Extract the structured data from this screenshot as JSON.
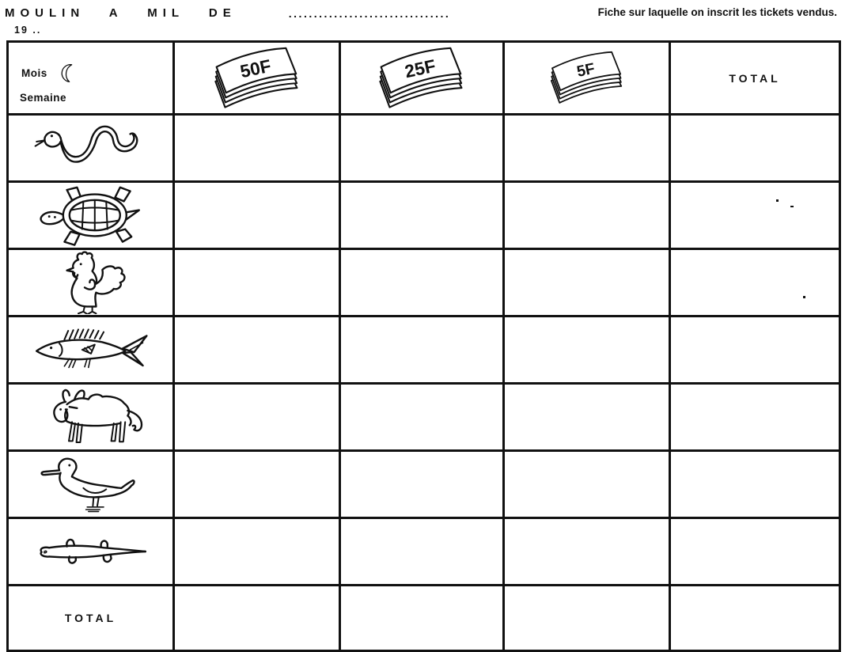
{
  "page": {
    "title": "MOULIN A MIL DE",
    "title_dots": "................................",
    "description": "Fiche sur laquelle on inscrit les tickets vendus.",
    "year_line": "19 .."
  },
  "table": {
    "header": {
      "month_label": "Mois",
      "moon_icon": "crescent-moon-icon",
      "week_label": "Semaine",
      "columns": [
        {
          "label": "50F",
          "icon": "ticket-stack-50f-icon"
        },
        {
          "label": "25F",
          "icon": "ticket-stack-25f-icon"
        },
        {
          "label": "5F",
          "icon": "ticket-stack-5f-icon"
        }
      ],
      "total_label": "TOTAL"
    },
    "rows": [
      {
        "icon": "snake-icon"
      },
      {
        "icon": "turtle-icon"
      },
      {
        "icon": "rooster-icon"
      },
      {
        "icon": "fish-icon"
      },
      {
        "icon": "ox-icon"
      },
      {
        "icon": "duck-icon"
      },
      {
        "icon": "lizard-icon"
      }
    ],
    "footer": {
      "total_label": "TOTAL"
    }
  },
  "colors": {
    "ink": "#111111",
    "paper": "#ffffff"
  }
}
